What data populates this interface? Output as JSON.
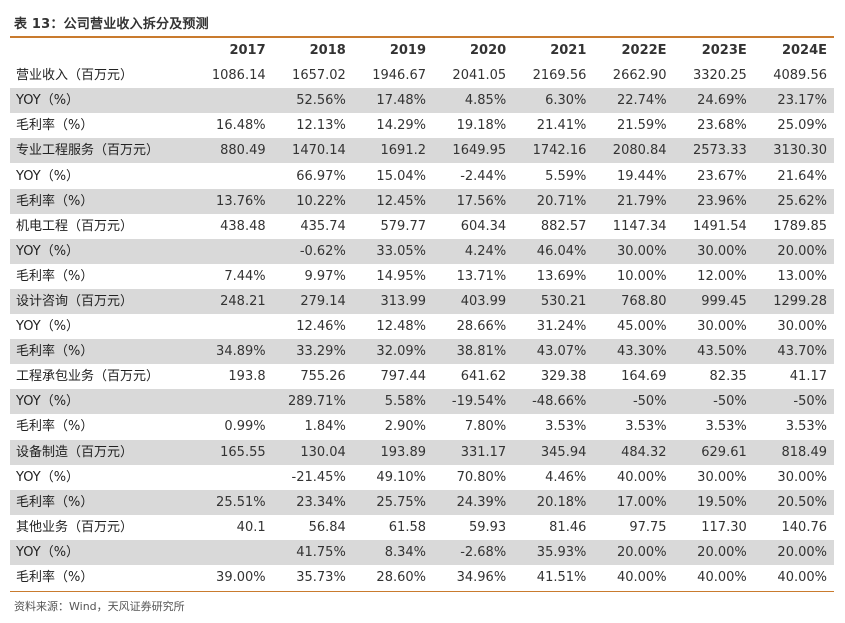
{
  "title": "表 13：公司营业收入拆分及预测",
  "source": "资料来源：Wind，天风证券研究所",
  "columns": [
    "",
    "2017",
    "2018",
    "2019",
    "2020",
    "2021",
    "2022E",
    "2023E",
    "2024E"
  ],
  "rows": [
    {
      "label": "营业收入（百万元）",
      "values": [
        "1086.14",
        "1657.02",
        "1946.67",
        "2041.05",
        "2169.56",
        "2662.90",
        "3320.25",
        "4089.56"
      ]
    },
    {
      "label": "YOY（%）",
      "values": [
        "",
        "52.56%",
        "17.48%",
        "4.85%",
        "6.30%",
        "22.74%",
        "24.69%",
        "23.17%"
      ]
    },
    {
      "label": "毛利率（%）",
      "values": [
        "16.48%",
        "12.13%",
        "14.29%",
        "19.18%",
        "21.41%",
        "21.59%",
        "23.68%",
        "25.09%"
      ]
    },
    {
      "label": "专业工程服务（百万元）",
      "values": [
        "880.49",
        "1470.14",
        "1691.2",
        "1649.95",
        "1742.16",
        "2080.84",
        "2573.33",
        "3130.30"
      ]
    },
    {
      "label": "YOY（%）",
      "values": [
        "",
        "66.97%",
        "15.04%",
        "-2.44%",
        "5.59%",
        "19.44%",
        "23.67%",
        "21.64%"
      ]
    },
    {
      "label": "毛利率（%）",
      "values": [
        "13.76%",
        "10.22%",
        "12.45%",
        "17.56%",
        "20.71%",
        "21.79%",
        "23.96%",
        "25.62%"
      ]
    },
    {
      "label": "机电工程（百万元）",
      "values": [
        "438.48",
        "435.74",
        "579.77",
        "604.34",
        "882.57",
        "1147.34",
        "1491.54",
        "1789.85"
      ]
    },
    {
      "label": "YOY（%）",
      "values": [
        "",
        "-0.62%",
        "33.05%",
        "4.24%",
        "46.04%",
        "30.00%",
        "30.00%",
        "20.00%"
      ]
    },
    {
      "label": "毛利率（%）",
      "values": [
        "7.44%",
        "9.97%",
        "14.95%",
        "13.71%",
        "13.69%",
        "10.00%",
        "12.00%",
        "13.00%"
      ]
    },
    {
      "label": "设计咨询（百万元）",
      "values": [
        "248.21",
        "279.14",
        "313.99",
        "403.99",
        "530.21",
        "768.80",
        "999.45",
        "1299.28"
      ]
    },
    {
      "label": "YOY（%）",
      "values": [
        "",
        "12.46%",
        "12.48%",
        "28.66%",
        "31.24%",
        "45.00%",
        "30.00%",
        "30.00%"
      ]
    },
    {
      "label": "毛利率（%）",
      "values": [
        "34.89%",
        "33.29%",
        "32.09%",
        "38.81%",
        "43.07%",
        "43.30%",
        "43.50%",
        "43.70%"
      ]
    },
    {
      "label": "工程承包业务（百万元）",
      "values": [
        "193.8",
        "755.26",
        "797.44",
        "641.62",
        "329.38",
        "164.69",
        "82.35",
        "41.17"
      ]
    },
    {
      "label": "YOY（%）",
      "values": [
        "",
        "289.71%",
        "5.58%",
        "-19.54%",
        "-48.66%",
        "-50%",
        "-50%",
        "-50%"
      ]
    },
    {
      "label": "毛利率（%）",
      "values": [
        "0.99%",
        "1.84%",
        "2.90%",
        "7.80%",
        "3.53%",
        "3.53%",
        "3.53%",
        "3.53%"
      ]
    },
    {
      "label": "设备制造（百万元）",
      "values": [
        "165.55",
        "130.04",
        "193.89",
        "331.17",
        "345.94",
        "484.32",
        "629.61",
        "818.49"
      ]
    },
    {
      "label": "YOY（%）",
      "values": [
        "",
        "-21.45%",
        "49.10%",
        "70.80%",
        "4.46%",
        "40.00%",
        "30.00%",
        "30.00%"
      ]
    },
    {
      "label": "毛利率（%）",
      "values": [
        "25.51%",
        "23.34%",
        "25.75%",
        "24.39%",
        "20.18%",
        "17.00%",
        "19.50%",
        "20.50%"
      ]
    },
    {
      "label": "其他业务（百万元）",
      "values": [
        "40.1",
        "56.84",
        "61.58",
        "59.93",
        "81.46",
        "97.75",
        "117.30",
        "140.76"
      ]
    },
    {
      "label": "YOY（%）",
      "values": [
        "",
        "41.75%",
        "8.34%",
        "-2.68%",
        "35.93%",
        "20.00%",
        "20.00%",
        "20.00%"
      ]
    },
    {
      "label": "毛利率（%）",
      "values": [
        "39.00%",
        "35.73%",
        "28.60%",
        "34.96%",
        "41.51%",
        "40.00%",
        "40.00%",
        "40.00%"
      ]
    }
  ],
  "colors": {
    "accent_rule": "#c97b2e",
    "stripe": "#d9d9d9"
  }
}
